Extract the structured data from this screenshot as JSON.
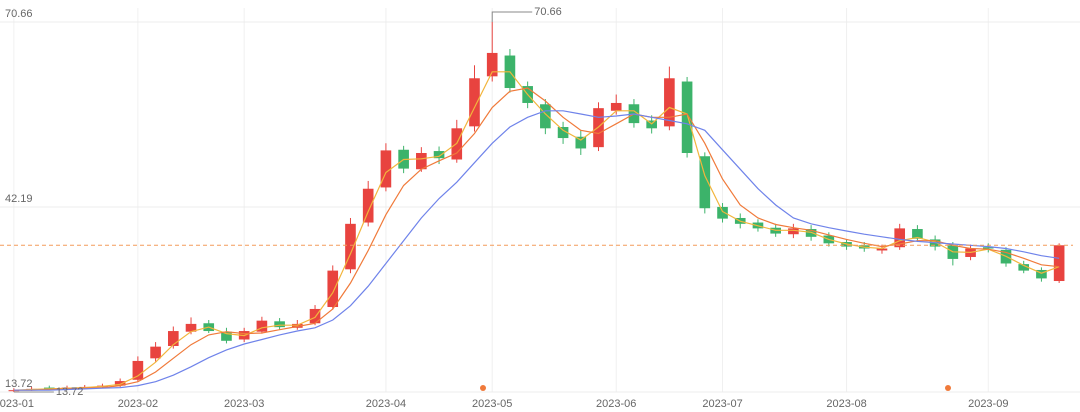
{
  "chart_data": {
    "type": "candlestick",
    "categories": [
      "2023-01",
      null,
      null,
      null,
      null,
      null,
      null,
      "2023-02",
      null,
      null,
      null,
      null,
      null,
      "2023-03",
      null,
      null,
      null,
      null,
      null,
      null,
      null,
      "2023-04",
      null,
      null,
      null,
      null,
      null,
      "2023-05",
      null,
      null,
      null,
      null,
      null,
      null,
      "2023-06",
      null,
      null,
      null,
      null,
      null,
      "2023-07",
      null,
      null,
      null,
      null,
      null,
      null,
      "2023-08",
      null,
      null,
      null,
      null,
      null,
      null,
      null,
      "2023-09",
      null,
      null,
      null,
      null
    ],
    "open": [
      13.9,
      14.0,
      14.4,
      14.3,
      14.4,
      14.5,
      14.7,
      15.6,
      18.9,
      20.8,
      23.0,
      24.3,
      23.0,
      21.8,
      23.0,
      24.6,
      23.6,
      24.3,
      26.8,
      32.6,
      39.8,
      45.2,
      51.0,
      48.0,
      50.8,
      49.5,
      54.6,
      62.3,
      65.5,
      60.8,
      58.0,
      54.5,
      53.0,
      51.4,
      57.0,
      58.0,
      55.5,
      54.6,
      61.5,
      50.0,
      42.2,
      40.5,
      39.8,
      39.0,
      38.0,
      38.8,
      37.8,
      36.8,
      36.3,
      35.5,
      36.0,
      38.8,
      37.2,
      36.3,
      34.5,
      36.0,
      35.6,
      33.4,
      32.5,
      30.8
    ],
    "high": [
      14.3,
      14.5,
      14.7,
      14.7,
      14.8,
      15.0,
      15.8,
      19.2,
      21.4,
      23.8,
      25.2,
      24.8,
      23.6,
      23.6,
      25.3,
      25.1,
      24.8,
      27.1,
      33.2,
      40.5,
      46.2,
      52.0,
      51.6,
      51.4,
      51.5,
      55.6,
      64.0,
      70.66,
      66.5,
      61.5,
      58.8,
      55.3,
      54.0,
      58.3,
      59.5,
      58.8,
      56.3,
      63.8,
      62.2,
      50.6,
      42.8,
      41.2,
      40.3,
      39.6,
      39.6,
      39.4,
      38.3,
      37.2,
      36.8,
      36.4,
      39.6,
      39.4,
      37.8,
      36.8,
      36.4,
      36.6,
      36.0,
      33.9,
      32.9,
      36.6
    ],
    "low": [
      13.72,
      13.9,
      14.1,
      14.1,
      14.2,
      14.3,
      14.5,
      15.3,
      18.4,
      20.4,
      22.6,
      22.8,
      21.2,
      21.4,
      22.7,
      23.3,
      23.3,
      24.0,
      26.4,
      32.0,
      39.2,
      44.6,
      47.4,
      47.6,
      48.8,
      49.0,
      53.8,
      61.5,
      59.8,
      57.4,
      53.4,
      51.9,
      50.2,
      50.8,
      56.4,
      54.4,
      53.5,
      54.0,
      49.8,
      41.2,
      39.8,
      38.9,
      38.4,
      37.6,
      37.4,
      37.0,
      36.1,
      35.6,
      35.3,
      35.0,
      35.6,
      36.8,
      35.5,
      33.2,
      34.0,
      35.2,
      33.0,
      32.0,
      30.7,
      30.5
    ],
    "close": [
      14.0,
      14.2,
      14.3,
      14.4,
      14.5,
      14.7,
      15.4,
      18.5,
      20.7,
      23.1,
      24.2,
      23.1,
      21.6,
      23.1,
      24.7,
      23.7,
      24.2,
      26.5,
      32.4,
      39.6,
      45.0,
      50.9,
      48.1,
      50.5,
      49.7,
      54.3,
      62.0,
      65.9,
      60.5,
      58.2,
      54.3,
      52.8,
      51.2,
      57.4,
      58.2,
      55.1,
      54.3,
      62.0,
      50.5,
      42.0,
      40.4,
      39.6,
      38.9,
      38.1,
      38.9,
      37.6,
      36.6,
      36.1,
      35.8,
      35.8,
      38.9,
      37.3,
      36.1,
      34.2,
      35.8,
      35.8,
      33.5,
      32.4,
      31.2,
      36.3
    ],
    "up_color": "#e8433f",
    "down_color": "#3cb36a",
    "series": [
      {
        "color": "#f2b53c",
        "values": [
          14.0,
          14.1,
          14.2,
          14.3,
          14.4,
          14.6,
          14.9,
          16.2,
          18.3,
          21.0,
          23.0,
          23.7,
          22.7,
          22.4,
          23.6,
          24.0,
          24.0,
          25.2,
          29.0,
          35.0,
          41.5,
          47.5,
          49.5,
          49.6,
          50.0,
          52.0,
          57.5,
          63.0,
          63.0,
          59.5,
          56.5,
          54.0,
          52.5,
          54.5,
          57.0,
          57.0,
          55.0,
          57.5,
          56.5,
          47.0,
          41.5,
          40.0,
          39.3,
          38.6,
          38.6,
          38.3,
          37.2,
          36.5,
          36.0,
          35.8,
          37.0,
          37.5,
          36.8,
          35.3,
          35.2,
          35.7,
          34.6,
          33.2,
          32.0,
          33.0
        ]
      },
      {
        "color": "#f07a3a",
        "values": [
          14.0,
          14.0,
          14.1,
          14.2,
          14.3,
          14.4,
          14.7,
          15.3,
          16.8,
          18.9,
          21.0,
          22.5,
          23.0,
          22.7,
          22.8,
          23.3,
          23.8,
          24.3,
          26.5,
          30.5,
          35.5,
          41.0,
          45.5,
          48.0,
          49.3,
          50.5,
          53.5,
          57.5,
          60.0,
          60.5,
          58.5,
          56.0,
          54.0,
          53.5,
          55.0,
          56.5,
          56.0,
          56.0,
          56.5,
          52.0,
          46.5,
          42.5,
          40.5,
          39.5,
          39.0,
          38.6,
          37.9,
          37.2,
          36.6,
          36.1,
          36.5,
          37.0,
          37.0,
          36.3,
          35.8,
          35.7,
          35.2,
          34.3,
          33.3,
          33.0
        ]
      },
      {
        "color": "#6f83ea",
        "values": [
          14.0,
          14.0,
          14.0,
          14.1,
          14.2,
          14.3,
          14.4,
          14.7,
          15.3,
          16.3,
          17.6,
          19.0,
          20.2,
          21.1,
          21.8,
          22.5,
          23.1,
          23.6,
          24.8,
          27.0,
          30.0,
          33.5,
          37.0,
          40.5,
          43.5,
          46.0,
          49.0,
          52.0,
          54.5,
          56.0,
          57.0,
          57.0,
          56.5,
          56.0,
          56.2,
          56.5,
          56.0,
          55.5,
          55.0,
          54.0,
          51.0,
          48.0,
          45.0,
          42.5,
          40.5,
          39.6,
          39.0,
          38.5,
          38.0,
          37.6,
          37.2,
          36.9,
          36.7,
          36.5,
          36.3,
          36.1,
          35.8,
          35.3,
          34.7,
          34.3
        ]
      }
    ],
    "ylim": [
      13.72,
      70.66
    ],
    "yticks": [
      13.72,
      42.19,
      70.66
    ],
    "grid": true
  }
}
